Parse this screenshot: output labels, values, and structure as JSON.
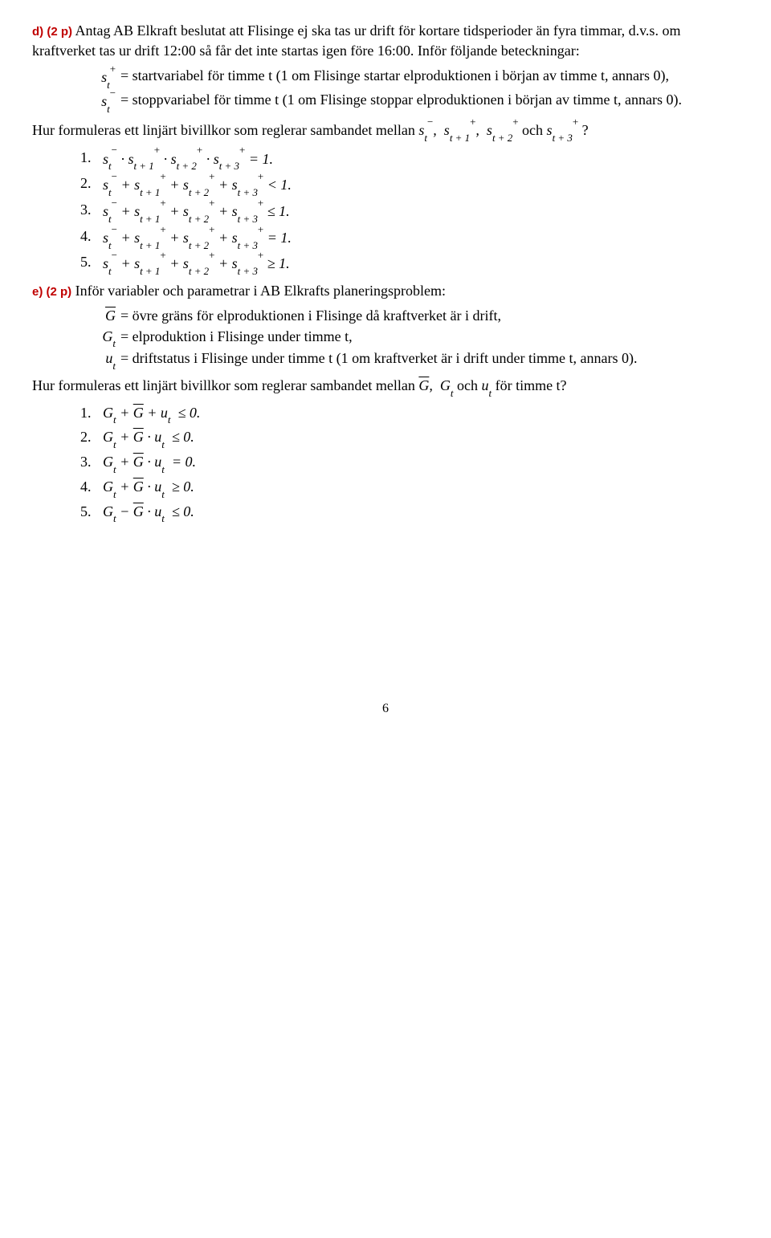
{
  "d": {
    "label": "d) (2 p)",
    "intro_1": "Antag AB Elkraft beslutat att Flisinge ej ska tas ur drift för kortare tidsperioder än fyra timmar, d.v.s. om kraftverket tas ur drift 12:00 så får det inte startas igen före 16:00. Inför följande beteckningar:",
    "def_plus": "= startvariabel för timme t (1 om Flisinge startar elproduktionen i början av timme t, annars 0),",
    "def_minus": "= stoppvariabel för timme t (1 om Flisinge stoppar elproduktionen i början av timme t, annars 0).",
    "question_prefix": "Hur formuleras ett linjärt bivillkor som reglerar sambandet mellan ",
    "och": " och ",
    "qmark": "?"
  },
  "e": {
    "label": "e) (2 p)",
    "intro": "Inför variabler och parametrar i AB Elkrafts planeringsproblem:",
    "def_gbar": "= övre gräns för elproduktionen i Flisinge då kraftverket är i drift,",
    "def_gt": "= elproduktion i Flisinge under timme t,",
    "def_ut": "= driftstatus i Flisinge under timme t (1 om kraftverket är i drift under timme t, annars 0).",
    "question_prefix": "Hur formuleras ett linjärt bivillkor som reglerar sambandet mellan ",
    "och": " och ",
    "suffix_for_t": " för timme t?"
  },
  "page": "6",
  "colors": {
    "heading_red": "#c00000",
    "text": "#000000",
    "bg": "#ffffff"
  },
  "typography": {
    "body_family": "Garamond/Georgia serif",
    "body_size_pt": 13,
    "label_family": "Verdana/Arial sans",
    "label_size_pt": 11
  }
}
